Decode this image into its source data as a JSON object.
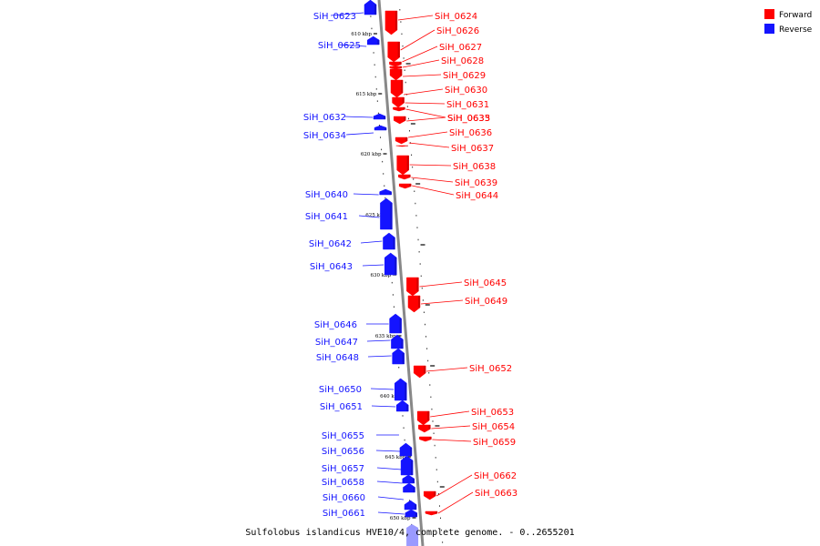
{
  "caption": "Sulfolobus islandicus HVE10/4, complete genome. - 0..2655201",
  "colors": {
    "forward": "#ff0000",
    "reverse": "#1414ff",
    "reverse_faded": "#9a9aff",
    "axis": "#888888"
  },
  "legend": [
    {
      "label": "Forward",
      "color": "#ff0000"
    },
    {
      "label": "Reverse",
      "color": "#1414ff"
    }
  ],
  "ticks": [
    "610 kbp",
    "615 kbp",
    "620 kbp",
    "625 kbp",
    "630 kbp",
    "635 kbp",
    "640 kbp",
    "645 kbp",
    "650 kbp"
  ],
  "genes": {
    "reverse": [
      "SiH_0623",
      "SiH_0625",
      "SiH_0632",
      "SiH_0634",
      "SiH_0640",
      "SiH_0641",
      "SiH_0642",
      "SiH_0643",
      "SiH_0646",
      "SiH_0647",
      "SiH_0648",
      "SiH_0650",
      "SiH_0651",
      "SiH_0655",
      "SiH_0656",
      "SiH_0657",
      "SiH_0658",
      "SiH_0660",
      "SiH_0661"
    ],
    "forward": [
      "SiH_0624",
      "SiH_0626",
      "SiH_0627",
      "SiH_0628",
      "SiH_0629",
      "SiH_0630",
      "SiH_0631",
      "SiH_0633",
      "SiH_0635",
      "SiH_0636",
      "SiH_0637",
      "SiH_0638",
      "SiH_0639",
      "SiH_0644",
      "SiH_0645",
      "SiH_0649",
      "SiH_0652",
      "SiH_0653",
      "SiH_0654",
      "SiH_0659",
      "SiH_0662",
      "SiH_0663"
    ]
  }
}
